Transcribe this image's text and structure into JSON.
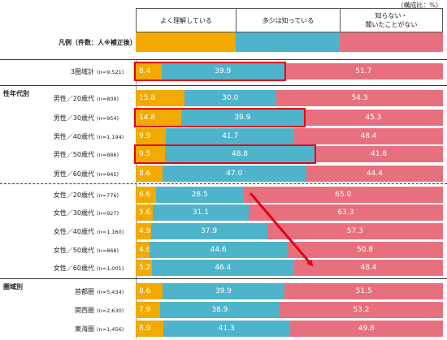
{
  "unit_label": "（構成比：%）",
  "legend": {
    "caption": "凡例（件数：人※補正後）",
    "items": [
      {
        "label": "よく理解している",
        "color": "#f2a900"
      },
      {
        "label": "多少は知っている",
        "color": "#4eb4cc"
      },
      {
        "label": "知らない・\n聞いたことがない",
        "color": "#e8707e"
      }
    ]
  },
  "groups": [
    {
      "label": "性年代別"
    },
    {
      "label": "圏域別"
    }
  ],
  "chart_data": {
    "type": "bar",
    "stacked": true,
    "orientation": "horizontal",
    "xlim": [
      0,
      100
    ],
    "series": [
      {
        "name": "よく理解している",
        "color": "#f2a900"
      },
      {
        "name": "多少は知っている",
        "color": "#4eb4cc"
      },
      {
        "name": "知らない・聞いたことがない",
        "color": "#e8707e"
      }
    ],
    "rows": [
      {
        "label": "3圏域計",
        "n": "(n=9,521)",
        "values": [
          8.4,
          39.9,
          51.7
        ],
        "highlight": true
      },
      {
        "label": "男性／20歳代",
        "n": "(n=809)",
        "values": [
          15.8,
          30.0,
          54.3
        ],
        "highlight": false
      },
      {
        "label": "男性／30歳代",
        "n": "(n=954)",
        "values": [
          14.8,
          39.9,
          45.3
        ],
        "highlight": true
      },
      {
        "label": "男性／40歳代",
        "n": "(n=1,194)",
        "values": [
          9.9,
          41.7,
          48.4
        ],
        "highlight": false
      },
      {
        "label": "男性／50歳代",
        "n": "(n=886)",
        "values": [
          9.5,
          48.8,
          41.8
        ],
        "highlight": true
      },
      {
        "label": "男性／60歳代",
        "n": "(n=945)",
        "values": [
          8.6,
          47.0,
          44.4
        ],
        "highlight": false
      },
      {
        "label": "女性／20歳代",
        "n": "(n=776)",
        "values": [
          6.6,
          28.5,
          65.0
        ],
        "highlight": false
      },
      {
        "label": "女性／30歳代",
        "n": "(n=927)",
        "values": [
          5.6,
          31.1,
          63.3
        ],
        "highlight": false
      },
      {
        "label": "女性／40歳代",
        "n": "(n=1,160)",
        "values": [
          4.9,
          37.9,
          57.3
        ],
        "highlight": false
      },
      {
        "label": "女性／50歳代",
        "n": "(n=868)",
        "values": [
          4.6,
          44.6,
          50.8
        ],
        "highlight": false
      },
      {
        "label": "女性／60歳代",
        "n": "(n=1,001)",
        "values": [
          5.2,
          46.4,
          48.4
        ],
        "highlight": false
      },
      {
        "label": "首都圏",
        "n": "(n=5,434)",
        "values": [
          8.6,
          39.9,
          51.5
        ],
        "highlight": false
      },
      {
        "label": "関西圏",
        "n": "(n=2,630)",
        "values": [
          7.9,
          38.9,
          53.2
        ],
        "highlight": false
      },
      {
        "label": "東海圏",
        "n": "(n=1,456)",
        "values": [
          8.9,
          41.3,
          49.8
        ],
        "highlight": false
      }
    ]
  }
}
